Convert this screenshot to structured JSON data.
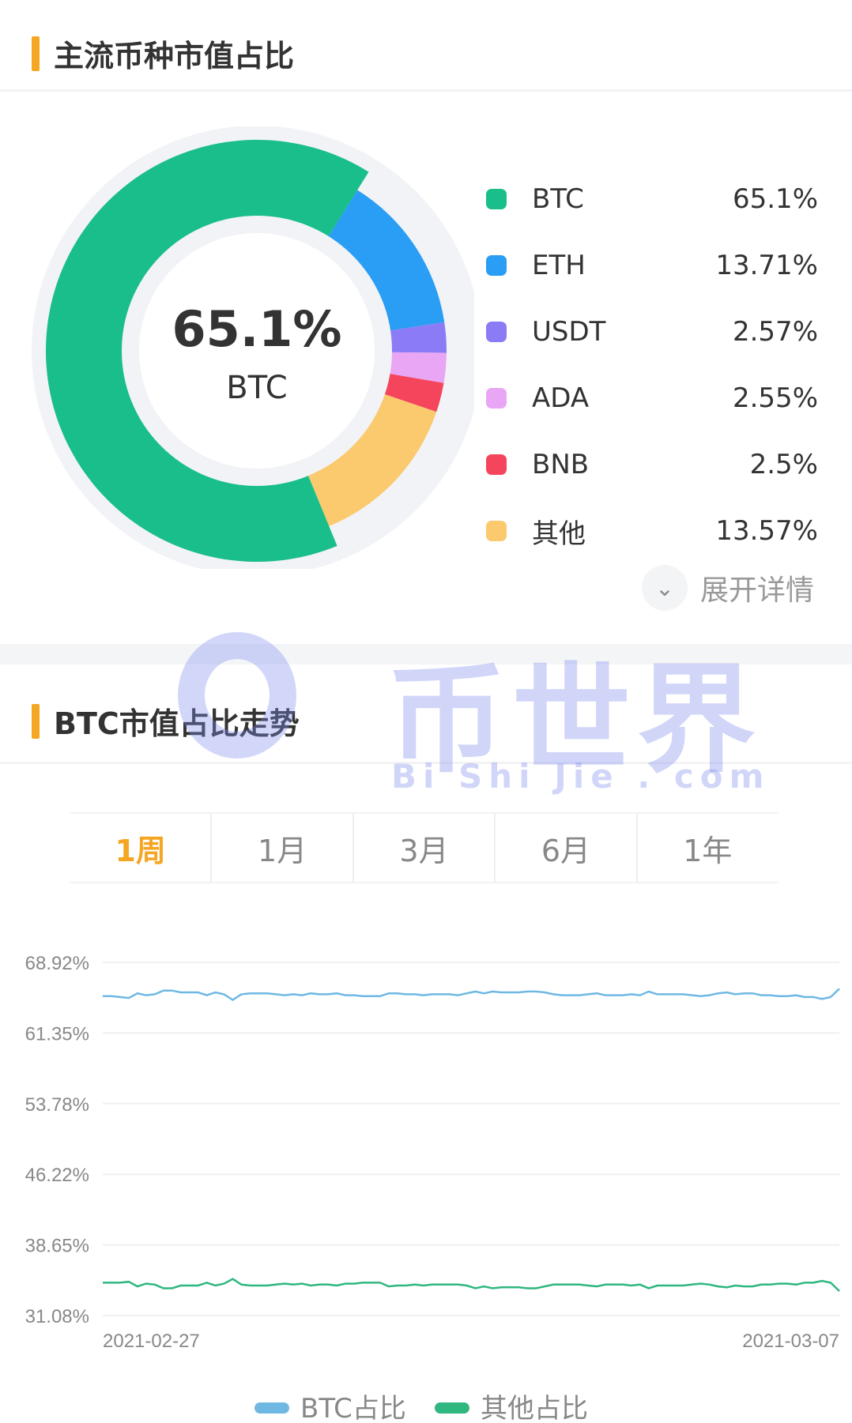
{
  "section1": {
    "title": "主流币种市值占比"
  },
  "donut": {
    "center_value": "65.1%",
    "center_label": "BTC",
    "items": [
      {
        "name": "BTC",
        "value": 65.1,
        "label": "65.1%",
        "color": "#19be8b"
      },
      {
        "name": "ETH",
        "value": 13.71,
        "label": "13.71%",
        "color": "#2a9df4"
      },
      {
        "name": "USDT",
        "value": 2.57,
        "label": "2.57%",
        "color": "#8b7cf6"
      },
      {
        "name": "ADA",
        "value": 2.55,
        "label": "2.55%",
        "color": "#e9a6f5"
      },
      {
        "name": "BNB",
        "value": 2.5,
        "label": "2.5%",
        "color": "#f5455c"
      },
      {
        "name": "其他",
        "value": 13.57,
        "label": "13.57%",
        "color": "#fbc96e"
      }
    ]
  },
  "expand": {
    "label": "展开详情",
    "icon": "chevron-down-icon"
  },
  "section2": {
    "title": "BTC市值占比走势"
  },
  "tabs": [
    {
      "label": "1周",
      "active": true
    },
    {
      "label": "1月",
      "active": false
    },
    {
      "label": "3月",
      "active": false
    },
    {
      "label": "6月",
      "active": false
    },
    {
      "label": "1年",
      "active": false
    }
  ],
  "watermark": {
    "logo": "币世界",
    "sub": "Bi Shi Jie . com"
  },
  "chart_data": {
    "type": "line",
    "ylim": [
      31.08,
      68.92
    ],
    "yticks": [
      "68.92%",
      "61.35%",
      "53.78%",
      "46.22%",
      "38.65%",
      "31.08%"
    ],
    "xticks": [
      "2021-02-27",
      "2021-03-07"
    ],
    "grid": true,
    "legend_placement": "bottom",
    "series": [
      {
        "name": "BTC占比",
        "color": "#6fb8e3",
        "values": [
          65.3,
          65.3,
          65.2,
          65.1,
          65.6,
          65.4,
          65.5,
          65.9,
          65.9,
          65.7,
          65.7,
          65.7,
          65.4,
          65.7,
          65.5,
          64.9,
          65.5,
          65.6,
          65.6,
          65.6,
          65.5,
          65.4,
          65.5,
          65.4,
          65.6,
          65.5,
          65.5,
          65.6,
          65.4,
          65.4,
          65.3,
          65.3,
          65.3,
          65.6,
          65.6,
          65.5,
          65.5,
          65.4,
          65.5,
          65.5,
          65.5,
          65.4,
          65.6,
          65.8,
          65.6,
          65.8,
          65.7,
          65.7,
          65.7,
          65.8,
          65.8,
          65.7,
          65.5,
          65.4,
          65.4,
          65.4,
          65.5,
          65.6,
          65.4,
          65.4,
          65.4,
          65.5,
          65.4,
          65.8,
          65.5,
          65.5,
          65.5,
          65.5,
          65.4,
          65.3,
          65.4,
          65.6,
          65.7,
          65.5,
          65.6,
          65.6,
          65.4,
          65.4,
          65.3,
          65.3,
          65.4,
          65.2,
          65.2,
          65.0,
          65.2,
          66.1
        ]
      },
      {
        "name": "其他占比",
        "color": "#2fb77f",
        "values": [
          34.6,
          34.6,
          34.6,
          34.7,
          34.2,
          34.5,
          34.4,
          34.0,
          34.0,
          34.3,
          34.3,
          34.3,
          34.6,
          34.3,
          34.5,
          35.0,
          34.4,
          34.3,
          34.3,
          34.3,
          34.4,
          34.5,
          34.4,
          34.5,
          34.3,
          34.4,
          34.4,
          34.3,
          34.5,
          34.5,
          34.6,
          34.6,
          34.6,
          34.2,
          34.3,
          34.3,
          34.4,
          34.3,
          34.4,
          34.4,
          34.4,
          34.4,
          34.3,
          34.0,
          34.2,
          34.0,
          34.1,
          34.1,
          34.1,
          34.0,
          34.0,
          34.2,
          34.4,
          34.4,
          34.4,
          34.4,
          34.3,
          34.2,
          34.4,
          34.4,
          34.4,
          34.3,
          34.4,
          34.0,
          34.3,
          34.3,
          34.3,
          34.3,
          34.4,
          34.5,
          34.4,
          34.2,
          34.1,
          34.3,
          34.2,
          34.2,
          34.4,
          34.4,
          34.5,
          34.5,
          34.4,
          34.6,
          34.6,
          34.8,
          34.6,
          33.7
        ]
      }
    ]
  }
}
